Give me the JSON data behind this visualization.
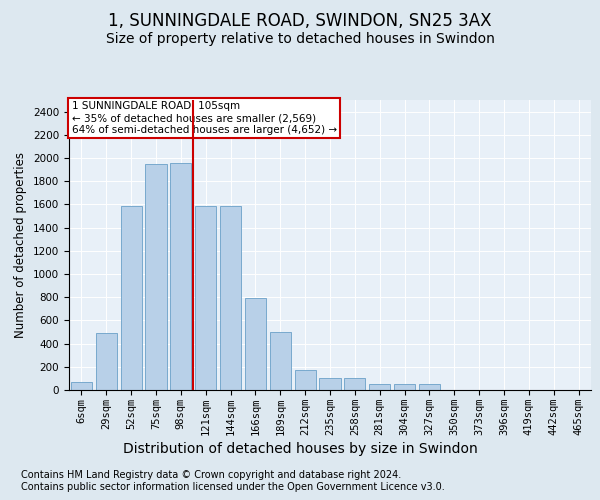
{
  "title1": "1, SUNNINGDALE ROAD, SWINDON, SN25 3AX",
  "title2": "Size of property relative to detached houses in Swindon",
  "xlabel": "Distribution of detached houses by size in Swindon",
  "ylabel": "Number of detached properties",
  "categories": [
    "6sqm",
    "29sqm",
    "52sqm",
    "75sqm",
    "98sqm",
    "121sqm",
    "144sqm",
    "166sqm",
    "189sqm",
    "212sqm",
    "235sqm",
    "258sqm",
    "281sqm",
    "304sqm",
    "327sqm",
    "350sqm",
    "373sqm",
    "396sqm",
    "419sqm",
    "442sqm",
    "465sqm"
  ],
  "values": [
    70,
    490,
    1590,
    1950,
    1960,
    1590,
    1590,
    790,
    500,
    175,
    100,
    100,
    50,
    50,
    50,
    0,
    0,
    0,
    0,
    0,
    0
  ],
  "bar_color": "#b8d0e8",
  "bar_edge_color": "#6aa0c8",
  "vline_color": "#cc0000",
  "vline_x": 4.5,
  "annotation_text": "1 SUNNINGDALE ROAD: 105sqm\n← 35% of detached houses are smaller (2,569)\n64% of semi-detached houses are larger (4,652) →",
  "annotation_box_color": "#ffffff",
  "annotation_box_edge_color": "#cc0000",
  "ylim": [
    0,
    2500
  ],
  "yticks": [
    0,
    200,
    400,
    600,
    800,
    1000,
    1200,
    1400,
    1600,
    1800,
    2000,
    2200,
    2400
  ],
  "footer1": "Contains HM Land Registry data © Crown copyright and database right 2024.",
  "footer2": "Contains public sector information licensed under the Open Government Licence v3.0.",
  "bg_color": "#dde8f0",
  "plot_bg_color": "#e8f0f8",
  "title1_fontsize": 12,
  "title2_fontsize": 10,
  "xlabel_fontsize": 10,
  "ylabel_fontsize": 8.5,
  "tick_fontsize": 7.5,
  "footer_fontsize": 7
}
